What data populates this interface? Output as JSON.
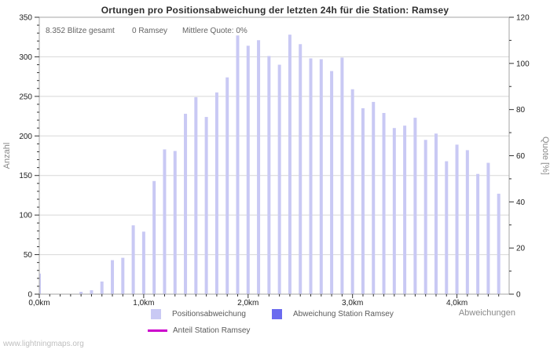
{
  "header": {
    "title": "Ortungen pro Positionsabweichung der letzten 24h für die Station: Ramsey"
  },
  "stats": {
    "total": "8.352 Blitze gesamt",
    "station": "0 Ramsey",
    "quote": "Mittlere Quote: 0%"
  },
  "chart_data": {
    "type": "bar",
    "title": "Ortungen pro Positionsabweichung der letzten 24h für die Station: Ramsey",
    "xlabel": "Abweichungen",
    "ylabel": "Anzahl",
    "ylabel_right": "Quote [%]",
    "xlim_km": [
      0,
      4.5
    ],
    "ylim": [
      0,
      350
    ],
    "ylim_right": [
      0,
      120
    ],
    "grid": "horizontal",
    "x_tick_labels": [
      "0,0km",
      "1,0km",
      "2,0km",
      "3,0km",
      "4,0km"
    ],
    "x_minor_step_km": 0.1,
    "y_tick_step_left": 50,
    "y_tick_step_right": 20,
    "x_km": [
      0.0,
      0.1,
      0.2,
      0.3,
      0.4,
      0.5,
      0.6,
      0.7,
      0.8,
      0.9,
      1.0,
      1.1,
      1.2,
      1.3,
      1.4,
      1.5,
      1.6,
      1.7,
      1.8,
      1.9,
      2.0,
      2.1,
      2.2,
      2.3,
      2.4,
      2.5,
      2.6,
      2.7,
      2.8,
      2.9,
      3.0,
      3.1,
      3.2,
      3.3,
      3.4,
      3.5,
      3.6,
      3.7,
      3.8,
      3.9,
      4.0,
      4.1,
      4.2,
      4.3,
      4.4
    ],
    "series": [
      {
        "name": "Positionsabweichung",
        "color": "#c9c9f4",
        "axis": "left",
        "values": [
          26,
          0,
          0,
          0,
          3,
          5,
          16,
          43,
          46,
          87,
          79,
          143,
          183,
          181,
          228,
          249,
          224,
          255,
          274,
          327,
          314,
          321,
          301,
          290,
          328,
          316,
          298,
          297,
          282,
          299,
          259,
          235,
          243,
          229,
          210,
          213,
          223,
          195,
          203,
          168,
          189,
          182,
          152,
          166,
          127
        ]
      },
      {
        "name": "Abweichung Station Ramsey",
        "color": "#6b6bef",
        "axis": "left",
        "values": []
      },
      {
        "name": "Anteil Station Ramsey",
        "color": "#cc00cc",
        "axis": "right",
        "values": []
      }
    ],
    "legend_position": "bottom"
  },
  "legend": {
    "items": [
      {
        "label": "Positionsabweichung",
        "color": "#c9c9f4",
        "swatch": "square"
      },
      {
        "label": "Abweichung Station Ramsey",
        "color": "#6b6bef",
        "swatch": "square"
      },
      {
        "label": "Anteil Station Ramsey",
        "color": "#cc00cc",
        "swatch": "line"
      }
    ]
  },
  "watermark": "www.lightningmaps.org",
  "colors": {
    "bar": "#c9c9f4",
    "station_bar": "#6b6bef",
    "anteil_line": "#cc00cc",
    "grid": "#d8d8d8",
    "axis": "#a5a5a5",
    "tick": "#333333",
    "tick_label": "#222222",
    "axis_label": "#8a8a8a",
    "stats_text": "#636363",
    "title_text": "#2f2f2f"
  }
}
